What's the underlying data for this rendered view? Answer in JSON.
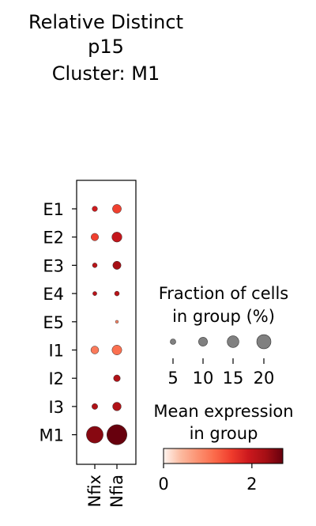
{
  "chart_data": {
    "type": "dotplot",
    "title_lines": [
      "Relative Distinct",
      "p15",
      "Cluster: M1"
    ],
    "genes": [
      "Nfix",
      "Nfia"
    ],
    "groups": [
      "E1",
      "E2",
      "E3",
      "E4",
      "E5",
      "I1",
      "I2",
      "I3",
      "M1"
    ],
    "fraction_pct": [
      [
        2.5,
        7.0
      ],
      [
        5.0,
        9.0
      ],
      [
        2.0,
        6.0
      ],
      [
        1.5,
        2.0
      ],
      [
        0,
        0.8
      ],
      [
        5.5,
        8.5
      ],
      [
        0,
        4.0
      ],
      [
        3.0,
        6.5
      ],
      [
        25.0,
        36.0
      ]
    ],
    "mean_expression": [
      [
        1.9,
        1.5
      ],
      [
        1.5,
        2.0
      ],
      [
        2.1,
        2.3
      ],
      [
        2.1,
        2.1
      ],
      [
        0,
        0.9
      ],
      [
        1.0,
        1.1
      ],
      [
        0,
        2.2
      ],
      [
        2.2,
        2.2
      ],
      [
        2.5,
        2.7
      ]
    ],
    "size_legend": {
      "title_lines": [
        "Fraction of cells",
        "in group (%)"
      ],
      "values": [
        5,
        10,
        15,
        20
      ],
      "tick_labels": [
        "5",
        "10",
        "15",
        "20"
      ]
    },
    "color_legend": {
      "title_lines": [
        "Mean expression",
        "in group"
      ],
      "range": [
        0,
        2.7
      ],
      "ticks": [
        0,
        2
      ],
      "tick_labels": [
        "0",
        "2"
      ],
      "colormap": "Reds",
      "colors": [
        "#fff5f0",
        "#fcbba1",
        "#fc9272",
        "#fb6a4a",
        "#ef3b2c",
        "#cb181d",
        "#a50f15",
        "#67000d"
      ]
    }
  }
}
